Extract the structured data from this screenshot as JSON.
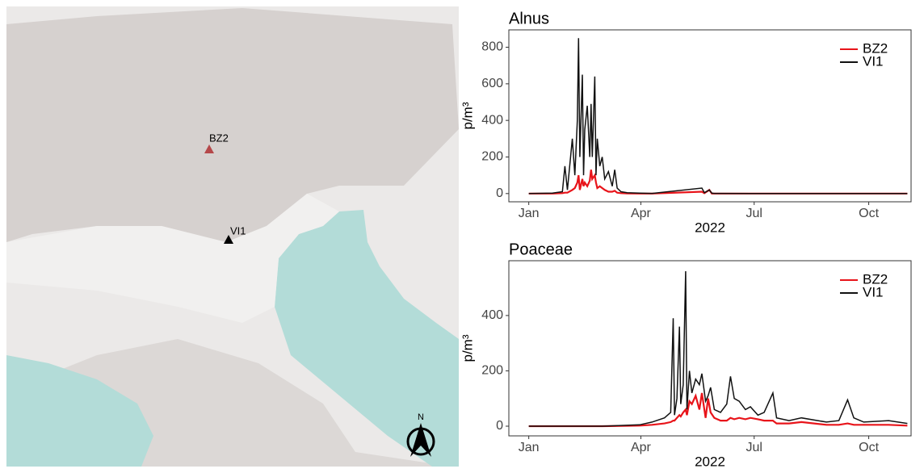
{
  "map": {
    "labels": [
      "BZ2",
      "VI1"
    ],
    "north": "N"
  },
  "chart_data": [
    {
      "type": "line",
      "title": "Alnus",
      "ylabel": "p/m³",
      "xlabel": "2022",
      "x": [
        1,
        20,
        28,
        30,
        32,
        36,
        38,
        40,
        41,
        42,
        44,
        45,
        46,
        48,
        50,
        51,
        52,
        54,
        55,
        56,
        58,
        60,
        62,
        65,
        68,
        70,
        72,
        75,
        80,
        90,
        100,
        140,
        142,
        146,
        148,
        150,
        180,
        240,
        305
      ],
      "series": [
        {
          "name": "BZ2",
          "color": "#e8141a",
          "values": [
            0,
            0,
            2,
            5,
            5,
            20,
            30,
            60,
            100,
            20,
            80,
            40,
            60,
            40,
            70,
            130,
            80,
            100,
            60,
            30,
            40,
            30,
            20,
            10,
            10,
            15,
            5,
            2,
            1,
            0,
            0,
            10,
            2,
            20,
            0,
            0,
            0,
            0,
            0
          ]
        },
        {
          "name": "VI1",
          "color": "#111111",
          "values": [
            0,
            2,
            10,
            150,
            20,
            300,
            100,
            400,
            850,
            200,
            650,
            100,
            350,
            480,
            200,
            490,
            200,
            640,
            100,
            300,
            150,
            200,
            80,
            120,
            40,
            130,
            30,
            10,
            5,
            2,
            1,
            30,
            5,
            20,
            2,
            1,
            0,
            0,
            0
          ]
        }
      ],
      "xlim": [
        -15,
        308
      ],
      "ylim": [
        -45,
        895
      ],
      "xticks": [
        {
          "value": 1,
          "label": "Jan"
        },
        {
          "value": 91,
          "label": "Apr"
        },
        {
          "value": 182,
          "label": "Jul"
        },
        {
          "value": 274,
          "label": "Oct"
        }
      ],
      "yticks": [
        0,
        200,
        400,
        600,
        800
      ],
      "legend": "top-right"
    },
    {
      "type": "line",
      "title": "Poaceae",
      "ylabel": "p/m³",
      "xlabel": "2022",
      "x": [
        1,
        60,
        90,
        100,
        110,
        115,
        117,
        118,
        120,
        122,
        123,
        125,
        127,
        128,
        130,
        132,
        135,
        138,
        140,
        143,
        145,
        147,
        150,
        155,
        160,
        163,
        166,
        170,
        175,
        179,
        185,
        190,
        197,
        200,
        210,
        220,
        240,
        250,
        257,
        262,
        270,
        290,
        305
      ],
      "series": [
        {
          "name": "BZ2",
          "color": "#e8141a",
          "values": [
            0,
            0,
            2,
            5,
            10,
            15,
            20,
            20,
            30,
            40,
            35,
            50,
            60,
            40,
            90,
            80,
            110,
            60,
            120,
            30,
            100,
            50,
            30,
            20,
            20,
            30,
            25,
            30,
            25,
            30,
            25,
            20,
            20,
            10,
            10,
            15,
            5,
            5,
            10,
            5,
            5,
            5,
            2
          ]
        },
        {
          "name": "VI1",
          "color": "#111111",
          "values": [
            0,
            0,
            5,
            15,
            30,
            50,
            390,
            40,
            100,
            360,
            80,
            150,
            560,
            60,
            200,
            120,
            170,
            150,
            190,
            90,
            110,
            140,
            60,
            50,
            80,
            180,
            100,
            90,
            60,
            70,
            40,
            50,
            120,
            30,
            20,
            30,
            15,
            20,
            95,
            30,
            15,
            20,
            10
          ]
        }
      ],
      "xlim": [
        -15,
        308
      ],
      "ylim": [
        -35,
        598
      ],
      "xticks": [
        {
          "value": 1,
          "label": "Jan"
        },
        {
          "value": 91,
          "label": "Apr"
        },
        {
          "value": 182,
          "label": "Jul"
        },
        {
          "value": 274,
          "label": "Oct"
        }
      ],
      "yticks": [
        0,
        200,
        400
      ],
      "legend": "top-right"
    }
  ]
}
